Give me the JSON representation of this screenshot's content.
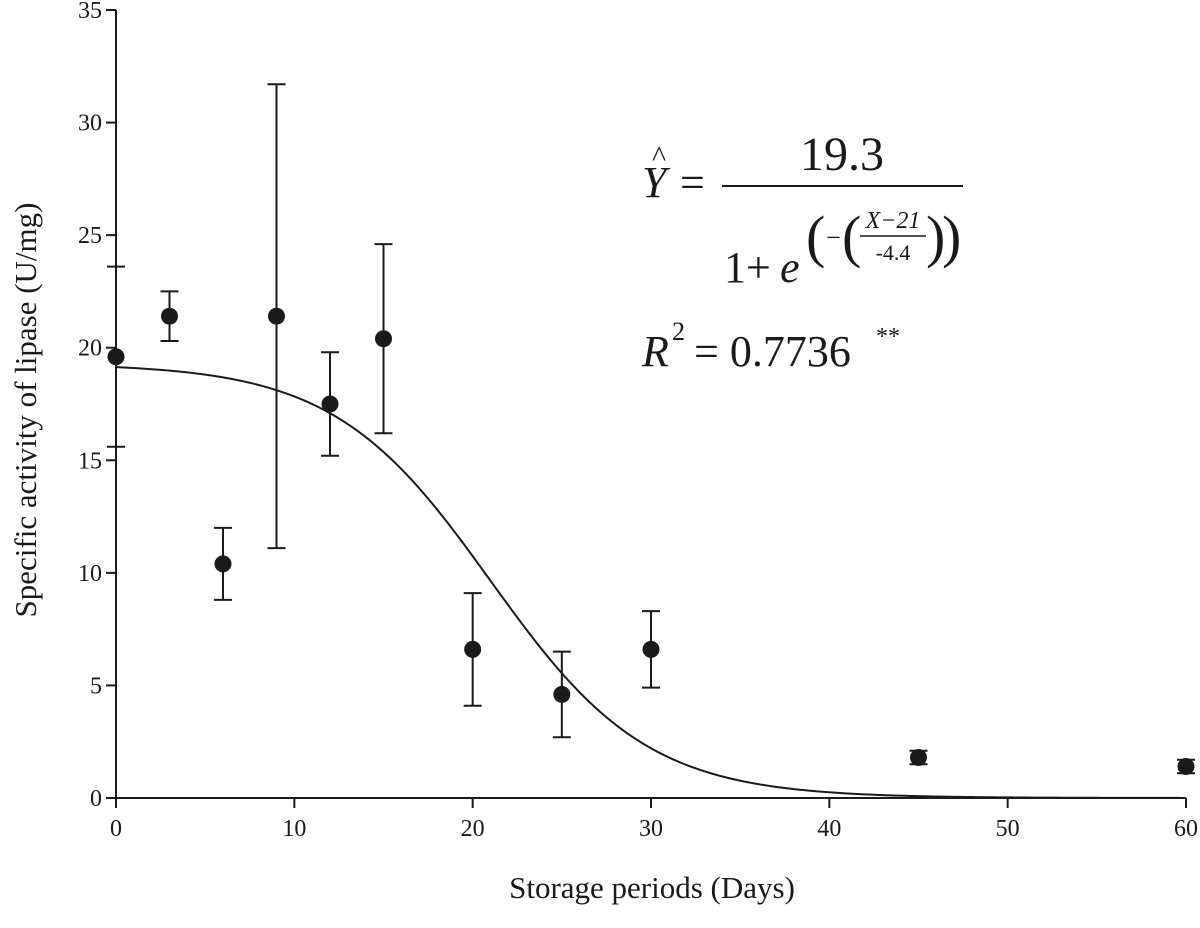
{
  "chart_data": {
    "type": "scatter",
    "xlabel": "Storage periods (Days)",
    "ylabel": "Specific activity of lipase (U/mg)",
    "xlim": [
      0,
      60
    ],
    "ylim": [
      0,
      35
    ],
    "xticks": [
      0,
      10,
      20,
      30,
      40,
      50,
      60
    ],
    "yticks": [
      0,
      5,
      10,
      15,
      20,
      25,
      30,
      35
    ],
    "grid": false,
    "points": [
      {
        "x": 0,
        "y": 19.6,
        "err": 4.0
      },
      {
        "x": 3,
        "y": 21.4,
        "err": 1.1
      },
      {
        "x": 6,
        "y": 10.4,
        "err": 1.6
      },
      {
        "x": 9,
        "y": 21.4,
        "err": 10.3
      },
      {
        "x": 12,
        "y": 17.5,
        "err": 2.3
      },
      {
        "x": 15,
        "y": 20.4,
        "err": 4.2
      },
      {
        "x": 20,
        "y": 6.6,
        "err": 2.5
      },
      {
        "x": 25,
        "y": 4.6,
        "err": 1.9
      },
      {
        "x": 30,
        "y": 6.6,
        "err": 1.7
      },
      {
        "x": 45,
        "y": 1.8,
        "err": 0.3
      },
      {
        "x": 60,
        "y": 1.4,
        "err": 0.3
      }
    ],
    "fit": {
      "a": 19.3,
      "x0": 21,
      "b": -4.4
    },
    "equation": {
      "yhat": "Y",
      "numerator": "19.3",
      "one_plus": "1+",
      "e": "e",
      "inner_x": "X−21",
      "inner_den": "-4.4",
      "r2_label": "R",
      "r2_sup": "2",
      "r2_value": "= 0.7736",
      "r2_sig": "**"
    }
  }
}
